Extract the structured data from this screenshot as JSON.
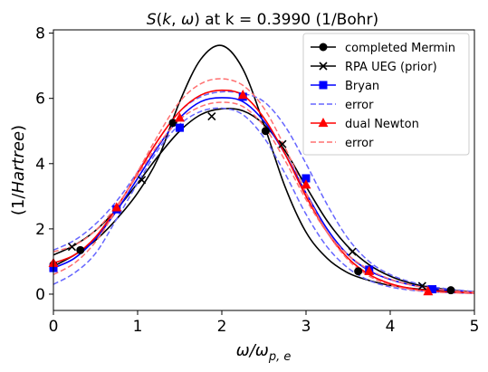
{
  "chart_data": {
    "type": "line",
    "title": "S(k, ω) at k = 0.3990 (1/Bohr)",
    "xlabel": "ω/ω_{p,e}",
    "ylabel": "(1/Hartree)",
    "xlim": [
      0,
      5
    ],
    "ylim": [
      -0.5,
      8.1
    ],
    "xticks": [
      "0",
      "1",
      "2",
      "3",
      "4",
      "5"
    ],
    "yticks": [
      "0",
      "2",
      "4",
      "6",
      "8"
    ],
    "legend_position": "top-right",
    "series": [
      {
        "name": "completed Mermin",
        "color": "#000000",
        "dash": "solid",
        "marker": "circle",
        "x": [
          0,
          0.25,
          0.5,
          0.75,
          1.0,
          1.25,
          1.5,
          1.75,
          2.0,
          2.25,
          2.5,
          2.75,
          3.0,
          3.25,
          3.5,
          3.75,
          4.0,
          4.25,
          4.5,
          4.75,
          5.0
        ],
        "y": [
          0.85,
          1.2,
          1.65,
          2.3,
          3.1,
          4.2,
          5.9,
          7.2,
          7.62,
          6.9,
          5.2,
          3.3,
          1.9,
          1.1,
          0.65,
          0.42,
          0.27,
          0.18,
          0.12,
          0.09,
          0.06
        ],
        "marker_x": [
          0,
          0.32,
          1.42,
          2.52,
          3.62,
          4.72
        ],
        "marker_y": [
          0.9,
          1.35,
          5.25,
          5.0,
          0.7,
          0.12
        ]
      },
      {
        "name": "RPA UEG (prior)",
        "color": "#000000",
        "dash": "solid",
        "marker": "x",
        "x": [
          0,
          0.25,
          0.5,
          0.75,
          1.0,
          1.25,
          1.5,
          1.75,
          2.0,
          2.25,
          2.5,
          2.75,
          3.0,
          3.25,
          3.5,
          3.75,
          4.0,
          4.25,
          4.5,
          4.75,
          5.0
        ],
        "y": [
          1.2,
          1.5,
          1.95,
          2.6,
          3.4,
          4.25,
          5.0,
          5.5,
          5.68,
          5.62,
          5.2,
          4.4,
          3.3,
          2.25,
          1.45,
          0.9,
          0.55,
          0.33,
          0.2,
          0.12,
          0.07
        ],
        "marker_x": [
          0.22,
          1.05,
          1.88,
          2.72,
          3.55,
          4.38
        ],
        "marker_y": [
          1.45,
          3.5,
          5.45,
          4.6,
          1.3,
          0.25
        ]
      },
      {
        "name": "Bryan",
        "color": "#0000ff",
        "dash": "solid",
        "marker": "square",
        "x": [
          0,
          0.25,
          0.5,
          0.75,
          1.0,
          1.25,
          1.5,
          1.75,
          2.0,
          2.25,
          2.5,
          2.75,
          3.0,
          3.25,
          3.5,
          3.75,
          4.0,
          4.25,
          4.5,
          4.75,
          5.0
        ],
        "y": [
          0.8,
          1.1,
          1.7,
          2.55,
          3.55,
          4.55,
          5.4,
          5.9,
          6.02,
          5.9,
          5.3,
          4.3,
          3.1,
          2.0,
          1.2,
          0.72,
          0.45,
          0.28,
          0.17,
          0.1,
          0.06
        ],
        "marker_x": [
          0,
          0.75,
          1.5,
          2.25,
          3.0,
          3.75,
          4.5
        ],
        "marker_y": [
          0.8,
          2.6,
          5.1,
          6.05,
          3.55,
          0.75,
          0.15
        ]
      },
      {
        "name": "error",
        "color": "#6666ff",
        "dash": "dashed",
        "marker": "none",
        "x": [
          0,
          0.25,
          0.5,
          0.75,
          1.0,
          1.25,
          1.5,
          1.75,
          2.0,
          2.25,
          2.5,
          2.75,
          3.0,
          3.25,
          3.5,
          3.75,
          4.0,
          4.25,
          4.5,
          4.75,
          5.0
        ],
        "y": [
          1.35,
          1.65,
          2.15,
          2.85,
          3.75,
          4.75,
          5.6,
          6.05,
          6.2,
          6.15,
          5.9,
          5.15,
          4.0,
          2.75,
          1.7,
          1.0,
          0.6,
          0.37,
          0.23,
          0.14,
          0.08
        ]
      },
      {
        "name": "",
        "color": "#6666ff",
        "dash": "dashed",
        "marker": "none",
        "x": [
          0,
          0.25,
          0.5,
          0.75,
          1.0,
          1.25,
          1.5,
          1.75,
          2.0,
          2.25,
          2.5,
          2.75,
          3.0,
          3.25,
          3.5,
          3.75,
          4.0,
          4.25,
          4.5,
          4.75,
          5.0
        ],
        "y": [
          0.3,
          0.65,
          1.25,
          2.3,
          3.4,
          4.45,
          5.2,
          5.6,
          5.7,
          5.5,
          4.8,
          3.7,
          2.45,
          1.45,
          0.8,
          0.42,
          0.22,
          0.12,
          0.07,
          0.04,
          0.02
        ]
      },
      {
        "name": "dual Newton",
        "color": "#ff0000",
        "dash": "solid",
        "marker": "triangle",
        "x": [
          0,
          0.25,
          0.5,
          0.75,
          1.0,
          1.25,
          1.5,
          1.75,
          2.0,
          2.25,
          2.5,
          2.75,
          3.0,
          3.25,
          3.5,
          3.75,
          4.0,
          4.25,
          4.5,
          4.75,
          5.0
        ],
        "y": [
          0.95,
          1.2,
          1.75,
          2.65,
          3.7,
          4.75,
          5.6,
          6.1,
          6.25,
          6.1,
          5.4,
          4.3,
          3.0,
          1.9,
          1.1,
          0.6,
          0.32,
          0.17,
          0.1,
          0.06,
          0.04
        ],
        "marker_x": [
          0,
          0.75,
          1.5,
          2.25,
          3.0,
          3.75,
          4.45
        ],
        "marker_y": [
          0.95,
          2.65,
          5.4,
          6.1,
          3.35,
          0.7,
          0.08
        ]
      },
      {
        "name": "error",
        "color": "#ff7070",
        "dash": "dashed",
        "marker": "none",
        "x": [
          0,
          0.25,
          0.5,
          0.75,
          1.0,
          1.25,
          1.5,
          1.75,
          2.0,
          2.25,
          2.5,
          2.75,
          3.0,
          3.25,
          3.5,
          3.75,
          4.0,
          4.25,
          4.5,
          4.75,
          5.0
        ],
        "y": [
          0.6,
          0.95,
          1.6,
          2.6,
          3.75,
          4.9,
          5.9,
          6.45,
          6.6,
          6.4,
          5.7,
          4.5,
          3.1,
          1.9,
          1.05,
          0.55,
          0.28,
          0.14,
          0.07,
          0.04,
          0.02
        ]
      },
      {
        "name": "",
        "color": "#ff7070",
        "dash": "dashed",
        "marker": "none",
        "x": [
          0,
          0.25,
          0.5,
          0.75,
          1.0,
          1.25,
          1.5,
          1.75,
          2.0,
          2.25,
          2.5,
          2.75,
          3.0,
          3.25,
          3.5,
          3.75,
          4.0,
          4.25,
          4.5,
          4.75,
          5.0
        ],
        "y": [
          1.3,
          1.5,
          1.95,
          2.7,
          3.65,
          4.6,
          5.35,
          5.75,
          5.88,
          5.75,
          5.15,
          4.1,
          2.9,
          1.9,
          1.2,
          0.75,
          0.46,
          0.28,
          0.17,
          0.1,
          0.06
        ]
      }
    ]
  }
}
